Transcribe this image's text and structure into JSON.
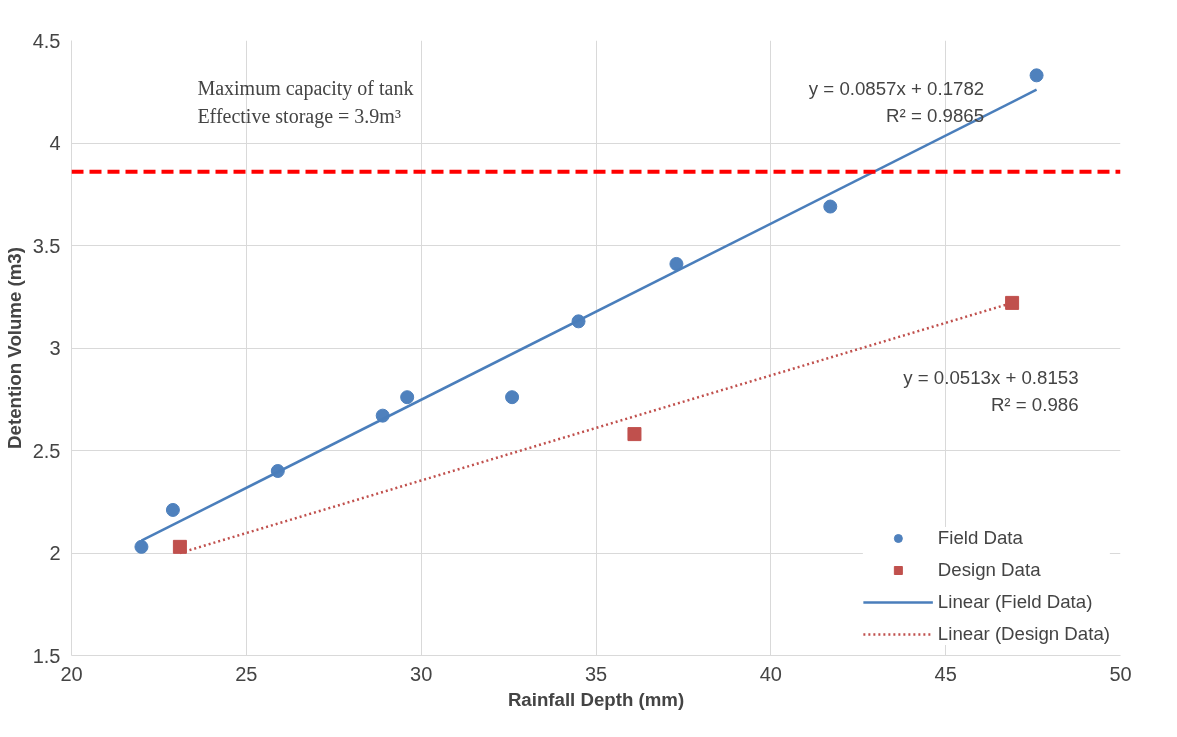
{
  "chart_data": {
    "type": "scatter",
    "xlabel": "Rainfall Depth (mm)",
    "ylabel": "Detention Volume (m3)",
    "xlim": [
      20,
      50
    ],
    "ylim": [
      1.5,
      4.5
    ],
    "xticks": [
      20,
      25,
      30,
      35,
      40,
      45,
      50
    ],
    "yticks": [
      1.5,
      2,
      2.5,
      3,
      3.5,
      4,
      4.5
    ],
    "grid": true,
    "legend": "bottom right",
    "series": [
      {
        "name": "Field Data",
        "marker": "circle",
        "color": "#4f81bd",
        "x": [
          22.0,
          22.9,
          25.9,
          28.9,
          29.6,
          32.6,
          34.5,
          37.3,
          41.7,
          47.6
        ],
        "values": [
          2.03,
          2.21,
          2.4,
          2.67,
          2.76,
          2.76,
          3.13,
          3.41,
          3.69,
          4.33
        ]
      },
      {
        "name": "Design Data",
        "marker": "square",
        "color": "#c0504d",
        "x": [
          23.1,
          36.1,
          46.9
        ],
        "values": [
          2.03,
          2.58,
          3.22
        ]
      },
      {
        "name": "Linear (Field Data)",
        "type": "line",
        "line_style": "solid",
        "color": "#4a7ebb",
        "x": [
          22.0,
          47.6
        ],
        "values": [
          2.06,
          4.26
        ]
      },
      {
        "name": "Linear (Design Data)",
        "type": "line",
        "line_style": "dotted",
        "color": "#c0504d",
        "x": [
          23.1,
          46.9
        ],
        "values": [
          2.0,
          3.22
        ]
      }
    ],
    "ref_lines": [
      {
        "axis": "y",
        "value": 3.86,
        "label": null,
        "color": "#ff0000",
        "line_style": "dashed"
      }
    ],
    "annotations": [
      "Maximum capacity of tank\nEffective storage = 3.9m³",
      "y = 0.0857x + 0.1782\nR² = 0.9865",
      "y = 0.0513x + 0.8153\nR² = 0.986"
    ]
  }
}
